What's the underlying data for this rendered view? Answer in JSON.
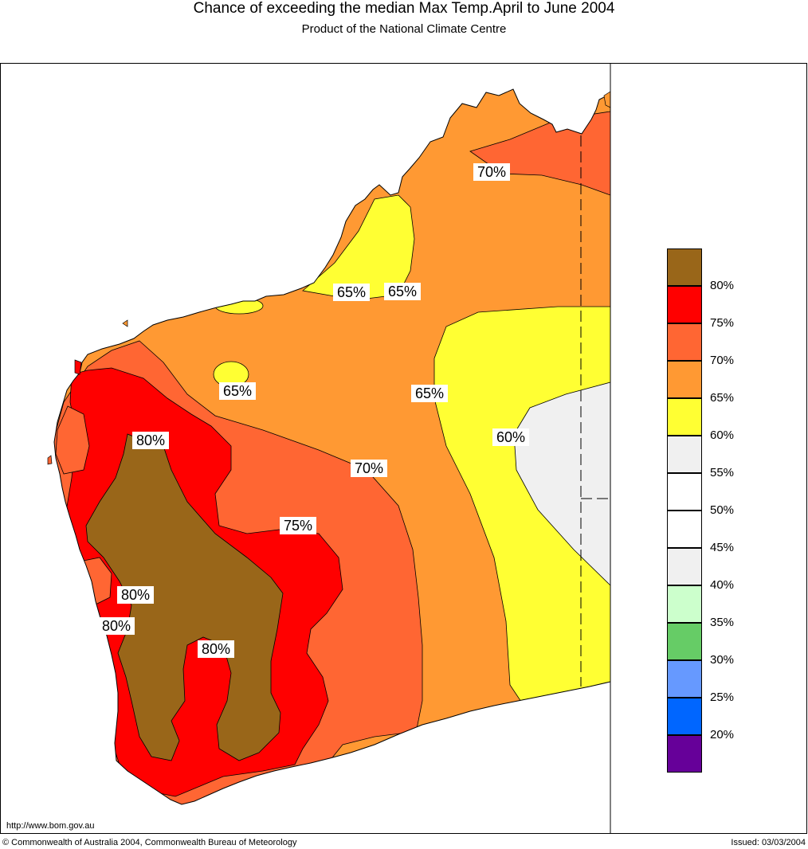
{
  "header": {
    "title": "Chance of exceeding the median Max Temp.April to June 2004",
    "subtitle": "Product of the National Climate Centre"
  },
  "map": {
    "region": "Western Australia",
    "colors": {
      "brown_80": "#996619",
      "red_75": "#ff0000",
      "orange_70": "#ff6633",
      "lightorange_65": "#ff9933",
      "yellow_60": "#ffff33",
      "grey_55": "#f0f0f0",
      "white_50": "#ffffff"
    },
    "contour_labels": [
      {
        "id": "lbl-70-north",
        "text": "70%"
      },
      {
        "id": "lbl-65-kimberley-a",
        "text": "65%"
      },
      {
        "id": "lbl-65-kimberley-b",
        "text": "65%"
      },
      {
        "id": "lbl-65-pilbara",
        "text": "65%"
      },
      {
        "id": "lbl-65-east",
        "text": "65%"
      },
      {
        "id": "lbl-60-east",
        "text": "60%"
      },
      {
        "id": "lbl-80-north",
        "text": "80%"
      },
      {
        "id": "lbl-70-central",
        "text": "70%"
      },
      {
        "id": "lbl-75-central",
        "text": "75%"
      },
      {
        "id": "lbl-80-west",
        "text": "80%"
      },
      {
        "id": "lbl-80-coast",
        "text": "80%"
      },
      {
        "id": "lbl-80-south",
        "text": "80%"
      }
    ]
  },
  "legend": {
    "swatches": [
      {
        "color": "#996619"
      },
      {
        "color": "#ff0000"
      },
      {
        "color": "#ff6633"
      },
      {
        "color": "#ff9933"
      },
      {
        "color": "#ffff33"
      },
      {
        "color": "#f0f0f0"
      },
      {
        "color": "#ffffff"
      },
      {
        "color": "#ffffff"
      },
      {
        "color": "#f0f0f0"
      },
      {
        "color": "#ccffcc"
      },
      {
        "color": "#66cc66"
      },
      {
        "color": "#6699ff"
      },
      {
        "color": "#0066ff"
      },
      {
        "color": "#660099"
      }
    ],
    "labels": [
      "80%",
      "75%",
      "70%",
      "65%",
      "60%",
      "55%",
      "50%",
      "45%",
      "40%",
      "35%",
      "30%",
      "25%",
      "20%"
    ]
  },
  "footer": {
    "url": "http://www.bom.gov.au",
    "copyright": "© Commonwealth of Australia 2004, Commonwealth Bureau of Meteorology",
    "issued": "Issued: 03/03/2004"
  }
}
